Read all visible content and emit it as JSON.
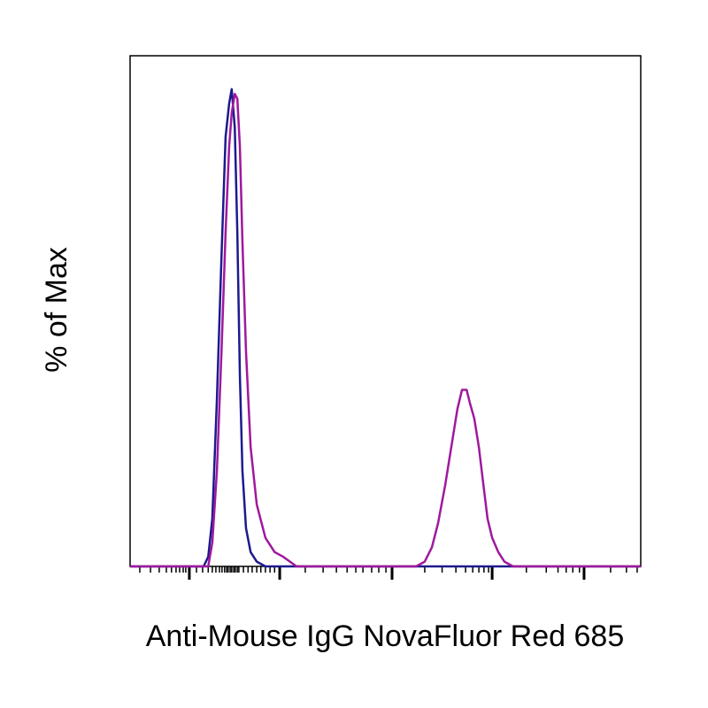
{
  "chart_data": {
    "type": "line",
    "x_label": "Anti-Mouse IgG NovaFluor Red 685",
    "y_label": "% of Max",
    "x": [
      0,
      14.4,
      15.3,
      16.1,
      17.0,
      17.9,
      18.7,
      19.4,
      19.9,
      20.5,
      21.0,
      21.5,
      22.0,
      22.7,
      23.6,
      24.8,
      26.5,
      28.3,
      30.0,
      32.6,
      56.0,
      57.7,
      59.1,
      60.3,
      61.7,
      62.9,
      64.1,
      65.0,
      65.9,
      66.6,
      67.4,
      68.3,
      69.2,
      70.0,
      70.9,
      72.1,
      73.3,
      75.0,
      100
    ],
    "series": [
      {
        "color": "#1c1a8e",
        "values": [
          0,
          0,
          2,
          10,
          35,
          65,
          90,
          97,
          100,
          92,
          70,
          40,
          20,
          8,
          3,
          1,
          0,
          0,
          0,
          0,
          0,
          0,
          0,
          0,
          0,
          0,
          0,
          0,
          0,
          0,
          0,
          0,
          0,
          0,
          0,
          0,
          0,
          0,
          0
        ]
      },
      {
        "color": "#a0189e",
        "values": [
          0,
          0,
          0,
          5,
          20,
          45,
          70,
          88,
          95,
          99,
          98,
          88,
          68,
          45,
          25,
          13,
          6,
          3,
          2,
          0,
          0,
          1,
          4,
          9,
          17,
          25,
          33,
          37,
          37,
          34,
          31,
          25,
          17,
          10,
          6,
          3,
          1,
          0,
          0
        ]
      }
    ],
    "xlim": [
      0,
      100
    ],
    "ylim": [
      0,
      107
    ],
    "xticks": [
      11.6,
      29.3,
      51.3,
      70.9,
      88.9
    ],
    "xminorticks": [
      1.9,
      4.0,
      5.7,
      7.1,
      8.1,
      9.0,
      9.7,
      10.4,
      10.9,
      13.0,
      14.2,
      15.3,
      16.1,
      16.8,
      17.5,
      18.0,
      18.5,
      18.9,
      19.2,
      19.6,
      19.9,
      20.3,
      20.6,
      21.0,
      21.3,
      22.2,
      23.1,
      23.9,
      24.8,
      25.6,
      26.5,
      27.4,
      28.3,
      34.3,
      37.8,
      40.4,
      42.5,
      44.2,
      45.6,
      47.3,
      48.7,
      50.1,
      57.7,
      61.1,
      63.8,
      65.7,
      67.1,
      68.3,
      69.3,
      70.2,
      77.6,
      81.5,
      83.8,
      85.4,
      86.7,
      88.0,
      94.1,
      97.2,
      99.3
    ]
  }
}
